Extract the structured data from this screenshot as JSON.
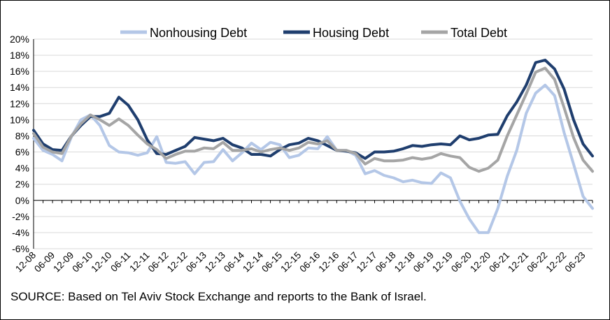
{
  "chart_data": {
    "type": "line",
    "title": "",
    "xlabel": "",
    "ylabel": "",
    "ylim": [
      -6,
      20
    ],
    "y_ticks": [
      -6,
      -4,
      -2,
      0,
      2,
      4,
      6,
      8,
      10,
      12,
      14,
      16,
      18,
      20
    ],
    "y_tick_labels": [
      "-6%",
      "-4%",
      "-2%",
      "0%",
      "2%",
      "4%",
      "6%",
      "8%",
      "10%",
      "12%",
      "14%",
      "16%",
      "18%",
      "20%"
    ],
    "x_tick_labels": [
      "12-08",
      "06-09",
      "12-09",
      "06-10",
      "12-10",
      "06-11",
      "12-11",
      "06-12",
      "12-12",
      "06-13",
      "12-13",
      "06-14",
      "12-14",
      "06-15",
      "12-15",
      "06-16",
      "12-16",
      "06-17",
      "12-17",
      "06-18",
      "12-18",
      "06-19",
      "12-19",
      "06-20",
      "12-20",
      "06-21",
      "12-21",
      "06-22",
      "12-22",
      "06-23"
    ],
    "periods_per_label": 2,
    "grid": true,
    "legend_position": "top",
    "series": [
      {
        "name": "Nonhousing Debt",
        "color": "#b4c7e7",
        "values": [
          7.7,
          6.2,
          5.7,
          4.9,
          7.9,
          10.0,
          10.6,
          9.3,
          6.8,
          6.0,
          5.9,
          5.6,
          5.9,
          7.9,
          4.7,
          4.6,
          4.8,
          3.3,
          4.7,
          4.8,
          6.3,
          4.9,
          5.9,
          7.1,
          6.3,
          7.2,
          6.9,
          5.3,
          5.6,
          6.5,
          6.4,
          7.9,
          6.2,
          6.2,
          5.6,
          3.3,
          3.7,
          3.1,
          2.8,
          2.3,
          2.5,
          2.2,
          2.1,
          3.4,
          2.8,
          -0.1,
          -2.3,
          -4.0,
          -4.0,
          -1.0,
          3.0,
          6.2,
          10.8,
          13.3,
          14.3,
          13.0,
          8.4,
          4.5,
          0.5,
          -1.0
        ]
      },
      {
        "name": "Housing Debt",
        "color": "#1f3e6e",
        "values": [
          8.7,
          7.0,
          6.3,
          6.2,
          8.0,
          9.3,
          10.4,
          10.4,
          10.8,
          12.8,
          11.8,
          10.0,
          7.5,
          5.8,
          5.7,
          6.2,
          6.7,
          7.8,
          7.6,
          7.4,
          7.7,
          6.9,
          6.5,
          5.7,
          5.7,
          5.5,
          6.3,
          6.9,
          7.1,
          7.7,
          7.4,
          6.8,
          6.2,
          6.1,
          5.9,
          5.2,
          6.0,
          6.0,
          6.1,
          6.4,
          6.8,
          6.7,
          6.9,
          7.0,
          6.9,
          8.0,
          7.5,
          7.7,
          8.1,
          8.2,
          10.5,
          12.2,
          14.3,
          17.1,
          17.4,
          16.3,
          13.8,
          10.0,
          7.0,
          5.5
        ]
      },
      {
        "name": "Total Debt",
        "color": "#a5a5a5",
        "values": [
          8.3,
          6.6,
          6.0,
          5.8,
          8.0,
          9.5,
          10.6,
          10.0,
          9.3,
          10.1,
          9.3,
          8.1,
          7.0,
          6.3,
          5.2,
          5.7,
          6.1,
          6.1,
          6.5,
          6.4,
          7.2,
          6.2,
          6.2,
          6.4,
          6.0,
          6.3,
          6.5,
          6.2,
          6.5,
          7.2,
          7.0,
          7.4,
          6.2,
          6.2,
          5.8,
          4.5,
          5.2,
          4.9,
          4.9,
          5.0,
          5.3,
          5.1,
          5.3,
          5.8,
          5.5,
          5.3,
          4.1,
          3.6,
          4.0,
          5.0,
          8.0,
          10.6,
          13.2,
          15.9,
          16.4,
          15.0,
          11.5,
          7.8,
          5.0,
          3.6
        ]
      }
    ]
  },
  "source_text": "SOURCE: Based on Tel Aviv Stock Exchange and reports to the Bank of Israel."
}
